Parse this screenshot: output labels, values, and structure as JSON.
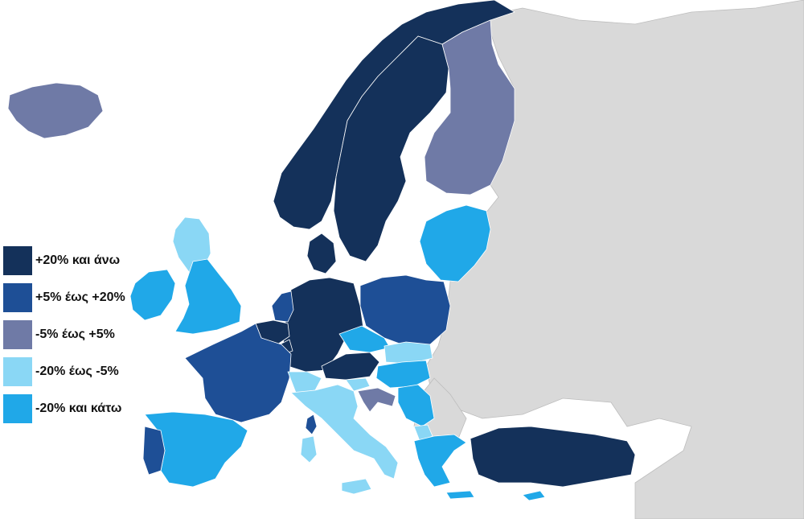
{
  "colors": {
    "background": "#ffffff",
    "non_data_land": "#d9d9d9",
    "border": "#ffffff"
  },
  "legend": [
    {
      "key": "c1",
      "label": "+20% και άνω",
      "color": "#14315a"
    },
    {
      "key": "c2",
      "label": "+5% έως +20%",
      "color": "#1e4f96"
    },
    {
      "key": "c3",
      "label": "-5% έως +5%",
      "color": "#6f7aa6"
    },
    {
      "key": "c4",
      "label": "-20% έως -5%",
      "color": "#8ad7f5"
    },
    {
      "key": "c5",
      "label": "-20% και κάτω",
      "color": "#20a8e8"
    }
  ],
  "regions": {
    "iceland": "c3",
    "norway": "c1",
    "sweden": "c1",
    "finland": "c3",
    "uk": "c5",
    "ireland": "c5",
    "scotland": "c4",
    "denmark": "c1",
    "baltics": "c5",
    "poland": "c2",
    "germany": "c1",
    "netherlands": "c2",
    "belgium": "c1",
    "luxembourg": "c1",
    "france": "c2",
    "spain": "c5",
    "portugal": "c2",
    "switzerland": "c4",
    "austria": "c1",
    "czechia": "c5",
    "slovakia": "c4",
    "hungary": "c5",
    "slovenia": "c4",
    "croatia": "c3",
    "serbia": "c5",
    "italy": "c4",
    "sardinia": "c4",
    "corsica": "c2",
    "greece": "c5",
    "cyprus": "c5",
    "turkey": "c1",
    "north_macedonia": "c4"
  }
}
